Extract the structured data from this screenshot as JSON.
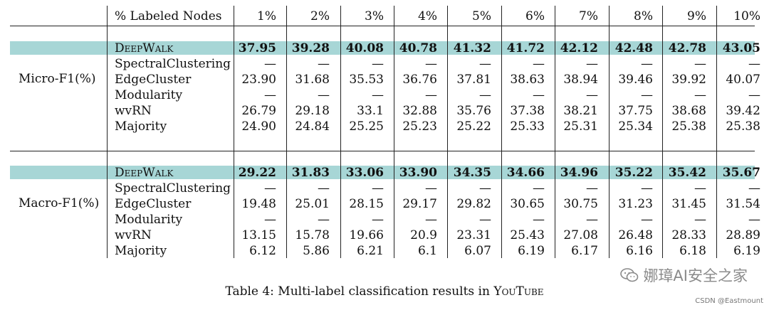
{
  "table": {
    "header_label": "% Labeled Nodes",
    "columns": [
      "1%",
      "2%",
      "3%",
      "4%",
      "5%",
      "6%",
      "7%",
      "8%",
      "9%",
      "10%"
    ],
    "groups": [
      {
        "metric": "Micro-F1(%)",
        "rows": [
          {
            "method": "DeepWalk",
            "highlight": true,
            "values": [
              "37.95",
              "39.28",
              "40.08",
              "40.78",
              "41.32",
              "41.72",
              "42.12",
              "42.48",
              "42.78",
              "43.05"
            ]
          },
          {
            "method": "SpectralClustering",
            "highlight": false,
            "values": [
              "—",
              "—",
              "—",
              "—",
              "—",
              "—",
              "—",
              "—",
              "—",
              "—"
            ]
          },
          {
            "method": "EdgeCluster",
            "highlight": false,
            "values": [
              "23.90",
              "31.68",
              "35.53",
              "36.76",
              "37.81",
              "38.63",
              "38.94",
              "39.46",
              "39.92",
              "40.07"
            ]
          },
          {
            "method": "Modularity",
            "highlight": false,
            "values": [
              "—",
              "—",
              "—",
              "—",
              "—",
              "—",
              "—",
              "—",
              "—",
              "—"
            ]
          },
          {
            "method": "wvRN",
            "highlight": false,
            "values": [
              "26.79",
              "29.18",
              "33.1",
              "32.88",
              "35.76",
              "37.38",
              "38.21",
              "37.75",
              "38.68",
              "39.42"
            ]
          },
          {
            "method": "Majority",
            "highlight": false,
            "values": [
              "24.90",
              "24.84",
              "25.25",
              "25.23",
              "25.22",
              "25.33",
              "25.31",
              "25.34",
              "25.38",
              "25.38"
            ]
          }
        ]
      },
      {
        "metric": "Macro-F1(%)",
        "rows": [
          {
            "method": "DeepWalk",
            "highlight": true,
            "values": [
              "29.22",
              "31.83",
              "33.06",
              "33.90",
              "34.35",
              "34.66",
              "34.96",
              "35.22",
              "35.42",
              "35.67"
            ]
          },
          {
            "method": "SpectralClustering",
            "highlight": false,
            "values": [
              "—",
              "—",
              "—",
              "—",
              "—",
              "—",
              "—",
              "—",
              "—",
              "—"
            ]
          },
          {
            "method": "EdgeCluster",
            "highlight": false,
            "values": [
              "19.48",
              "25.01",
              "28.15",
              "29.17",
              "29.82",
              "30.65",
              "30.75",
              "31.23",
              "31.45",
              "31.54"
            ]
          },
          {
            "method": "Modularity",
            "highlight": false,
            "values": [
              "—",
              "—",
              "—",
              "—",
              "—",
              "—",
              "—",
              "—",
              "—",
              "—"
            ]
          },
          {
            "method": "wvRN",
            "highlight": false,
            "values": [
              "13.15",
              "15.78",
              "19.66",
              "20.9",
              "23.31",
              "25.43",
              "27.08",
              "26.48",
              "28.33",
              "28.89"
            ]
          },
          {
            "method": "Majority",
            "highlight": false,
            "values": [
              "6.12",
              "5.86",
              "6.21",
              "6.1",
              "6.07",
              "6.19",
              "6.17",
              "6.16",
              "6.18",
              "6.19"
            ]
          }
        ]
      }
    ]
  },
  "caption": {
    "prefix": "Table 4: Multi-label classification results in ",
    "dataset": "YouTube"
  },
  "watermark": {
    "text": "娜璋AI安全之家",
    "icon": "wechat-icon",
    "credit": "CSDN @Eastmount"
  },
  "colors": {
    "highlight": "#a7d6d6"
  }
}
